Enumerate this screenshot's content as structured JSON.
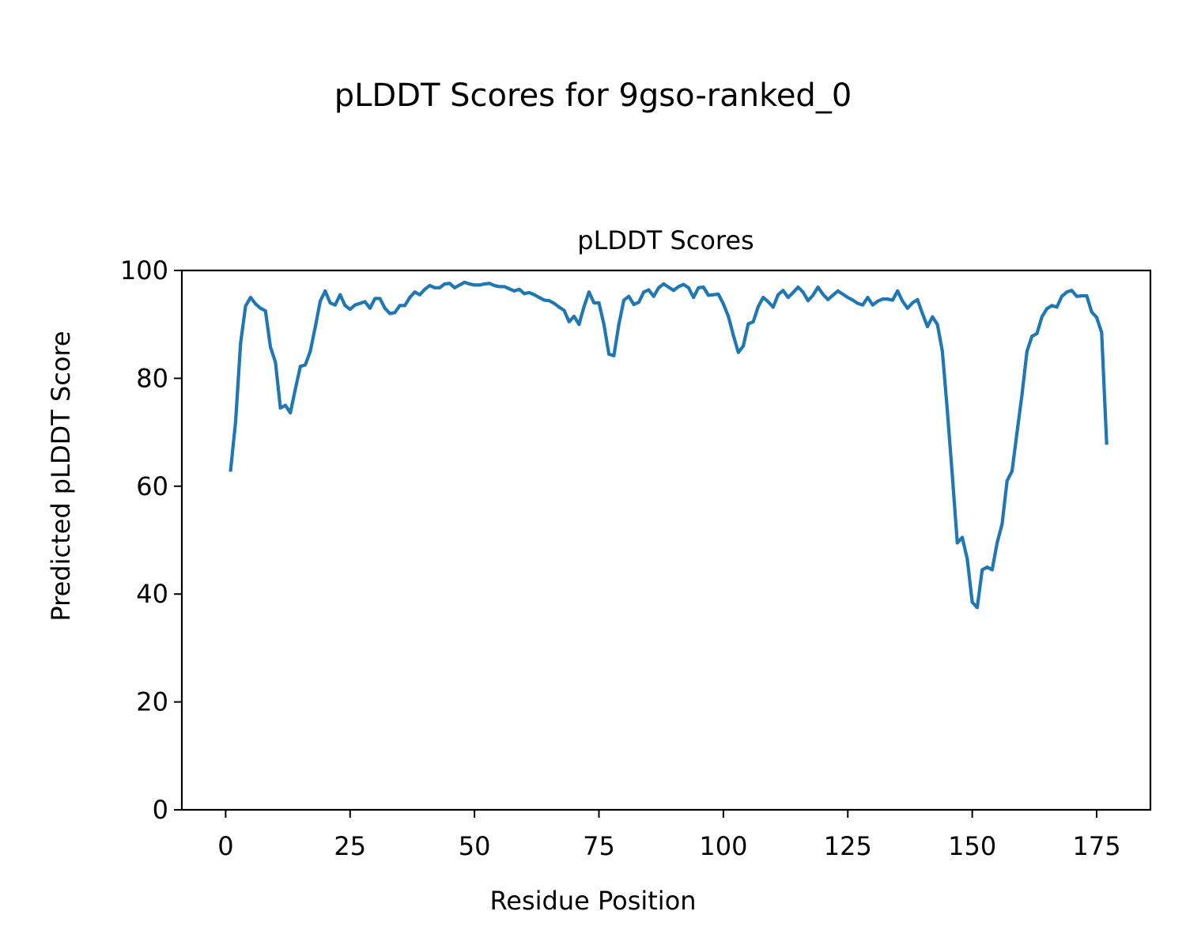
{
  "figure": {
    "suptitle": "pLDDT Scores for 9gso-ranked_0"
  },
  "chart_data": {
    "type": "line",
    "title": "pLDDT Scores",
    "xlabel": "Residue Position",
    "ylabel": "Predicted pLDDT Score",
    "xlim": [
      -8.8,
      185.8
    ],
    "ylim": [
      0,
      100
    ],
    "xticks": [
      0,
      25,
      50,
      75,
      100,
      125,
      150,
      175
    ],
    "yticks": [
      0,
      20,
      40,
      60,
      80,
      100
    ],
    "grid": false,
    "line_color": "#1f77b4",
    "series": [
      {
        "x": [
          1,
          2,
          3,
          4,
          5,
          6,
          7,
          8,
          9,
          10,
          11,
          12,
          13,
          14,
          15,
          16,
          17,
          18,
          19,
          20,
          21,
          22,
          23,
          24,
          25,
          26,
          27,
          28,
          29,
          30,
          31,
          32,
          33,
          34,
          35,
          36,
          37,
          38,
          39,
          40,
          41,
          42,
          43,
          44,
          45,
          46,
          47,
          48,
          49,
          50,
          51,
          52,
          53,
          54,
          55,
          56,
          57,
          58,
          59,
          60,
          61,
          62,
          63,
          64,
          65,
          66,
          67,
          68,
          69,
          70,
          71,
          72,
          73,
          74,
          75,
          76,
          77,
          78,
          79,
          80,
          81,
          82,
          83,
          84,
          85,
          86,
          87,
          88,
          89,
          90,
          91,
          92,
          93,
          94,
          95,
          96,
          97,
          98,
          99,
          100,
          101,
          102,
          103,
          104,
          105,
          106,
          107,
          108,
          109,
          110,
          111,
          112,
          113,
          114,
          115,
          116,
          117,
          118,
          119,
          120,
          121,
          122,
          123,
          124,
          125,
          126,
          127,
          128,
          129,
          130,
          131,
          132,
          133,
          134,
          135,
          136,
          137,
          138,
          139,
          140,
          141,
          142,
          143,
          144,
          145,
          146,
          147,
          148,
          149,
          150,
          151,
          152,
          153,
          154,
          155,
          156,
          157,
          158,
          159,
          160,
          161,
          162,
          163,
          164,
          165,
          166,
          167,
          168,
          169,
          170,
          171,
          172,
          173,
          174,
          175,
          176,
          177
        ],
        "y": [
          63,
          72,
          86.5,
          93.4,
          95,
          93.8,
          93,
          92.5,
          85.8,
          83,
          74.5,
          75,
          73.6,
          78,
          82.2,
          82.5,
          85,
          89.5,
          94.3,
          96.2,
          94,
          93.6,
          95.5,
          93.5,
          92.8,
          93.6,
          93.9,
          94.2,
          93,
          94.8,
          94.8,
          93,
          92,
          92.2,
          93.5,
          93.5,
          95,
          96,
          95.5,
          96.5,
          97.2,
          96.8,
          96.8,
          97.5,
          97.6,
          96.8,
          97.3,
          97.8,
          97.5,
          97.3,
          97.3,
          97.5,
          97.6,
          97.2,
          97,
          97,
          96.6,
          96.2,
          96.5,
          95.7,
          95.9,
          95.5,
          95,
          94.5,
          94.4,
          93.9,
          93.2,
          92.6,
          90.5,
          91.5,
          90,
          93.3,
          96,
          94,
          94,
          90,
          84.5,
          84.2,
          90,
          94.5,
          95.2,
          93.7,
          94.1,
          96,
          96.4,
          95.2,
          96.8,
          97.5,
          96.9,
          96.3,
          97,
          97.4,
          96.8,
          95,
          96.8,
          96.9,
          95.4,
          95.5,
          95.6,
          93.8,
          91.5,
          88,
          84.8,
          86,
          90.1,
          90.5,
          93.3,
          95,
          94.2,
          93.2,
          95.5,
          96.3,
          95,
          95.9,
          96.9,
          96,
          94.4,
          95.4,
          96.9,
          95.6,
          94.6,
          95.4,
          96.2,
          95.6,
          95,
          94.5,
          93.9,
          93.6,
          95,
          93.6,
          94.3,
          94.7,
          94.7,
          94.5,
          96.2,
          94.3,
          93,
          94,
          94.6,
          92,
          89.6,
          91.4,
          90,
          85,
          74,
          62,
          49.5,
          50.5,
          46.5,
          38.5,
          37.5,
          44.5,
          45,
          44.5,
          49.5,
          53,
          61,
          62.8,
          70,
          77,
          85,
          87.8,
          88.3,
          91.4,
          92.9,
          93.5,
          93.2,
          95.2,
          96,
          96.3,
          95.2,
          95.3,
          95.3,
          92.3,
          91.3,
          88.5,
          68
        ]
      }
    ]
  }
}
